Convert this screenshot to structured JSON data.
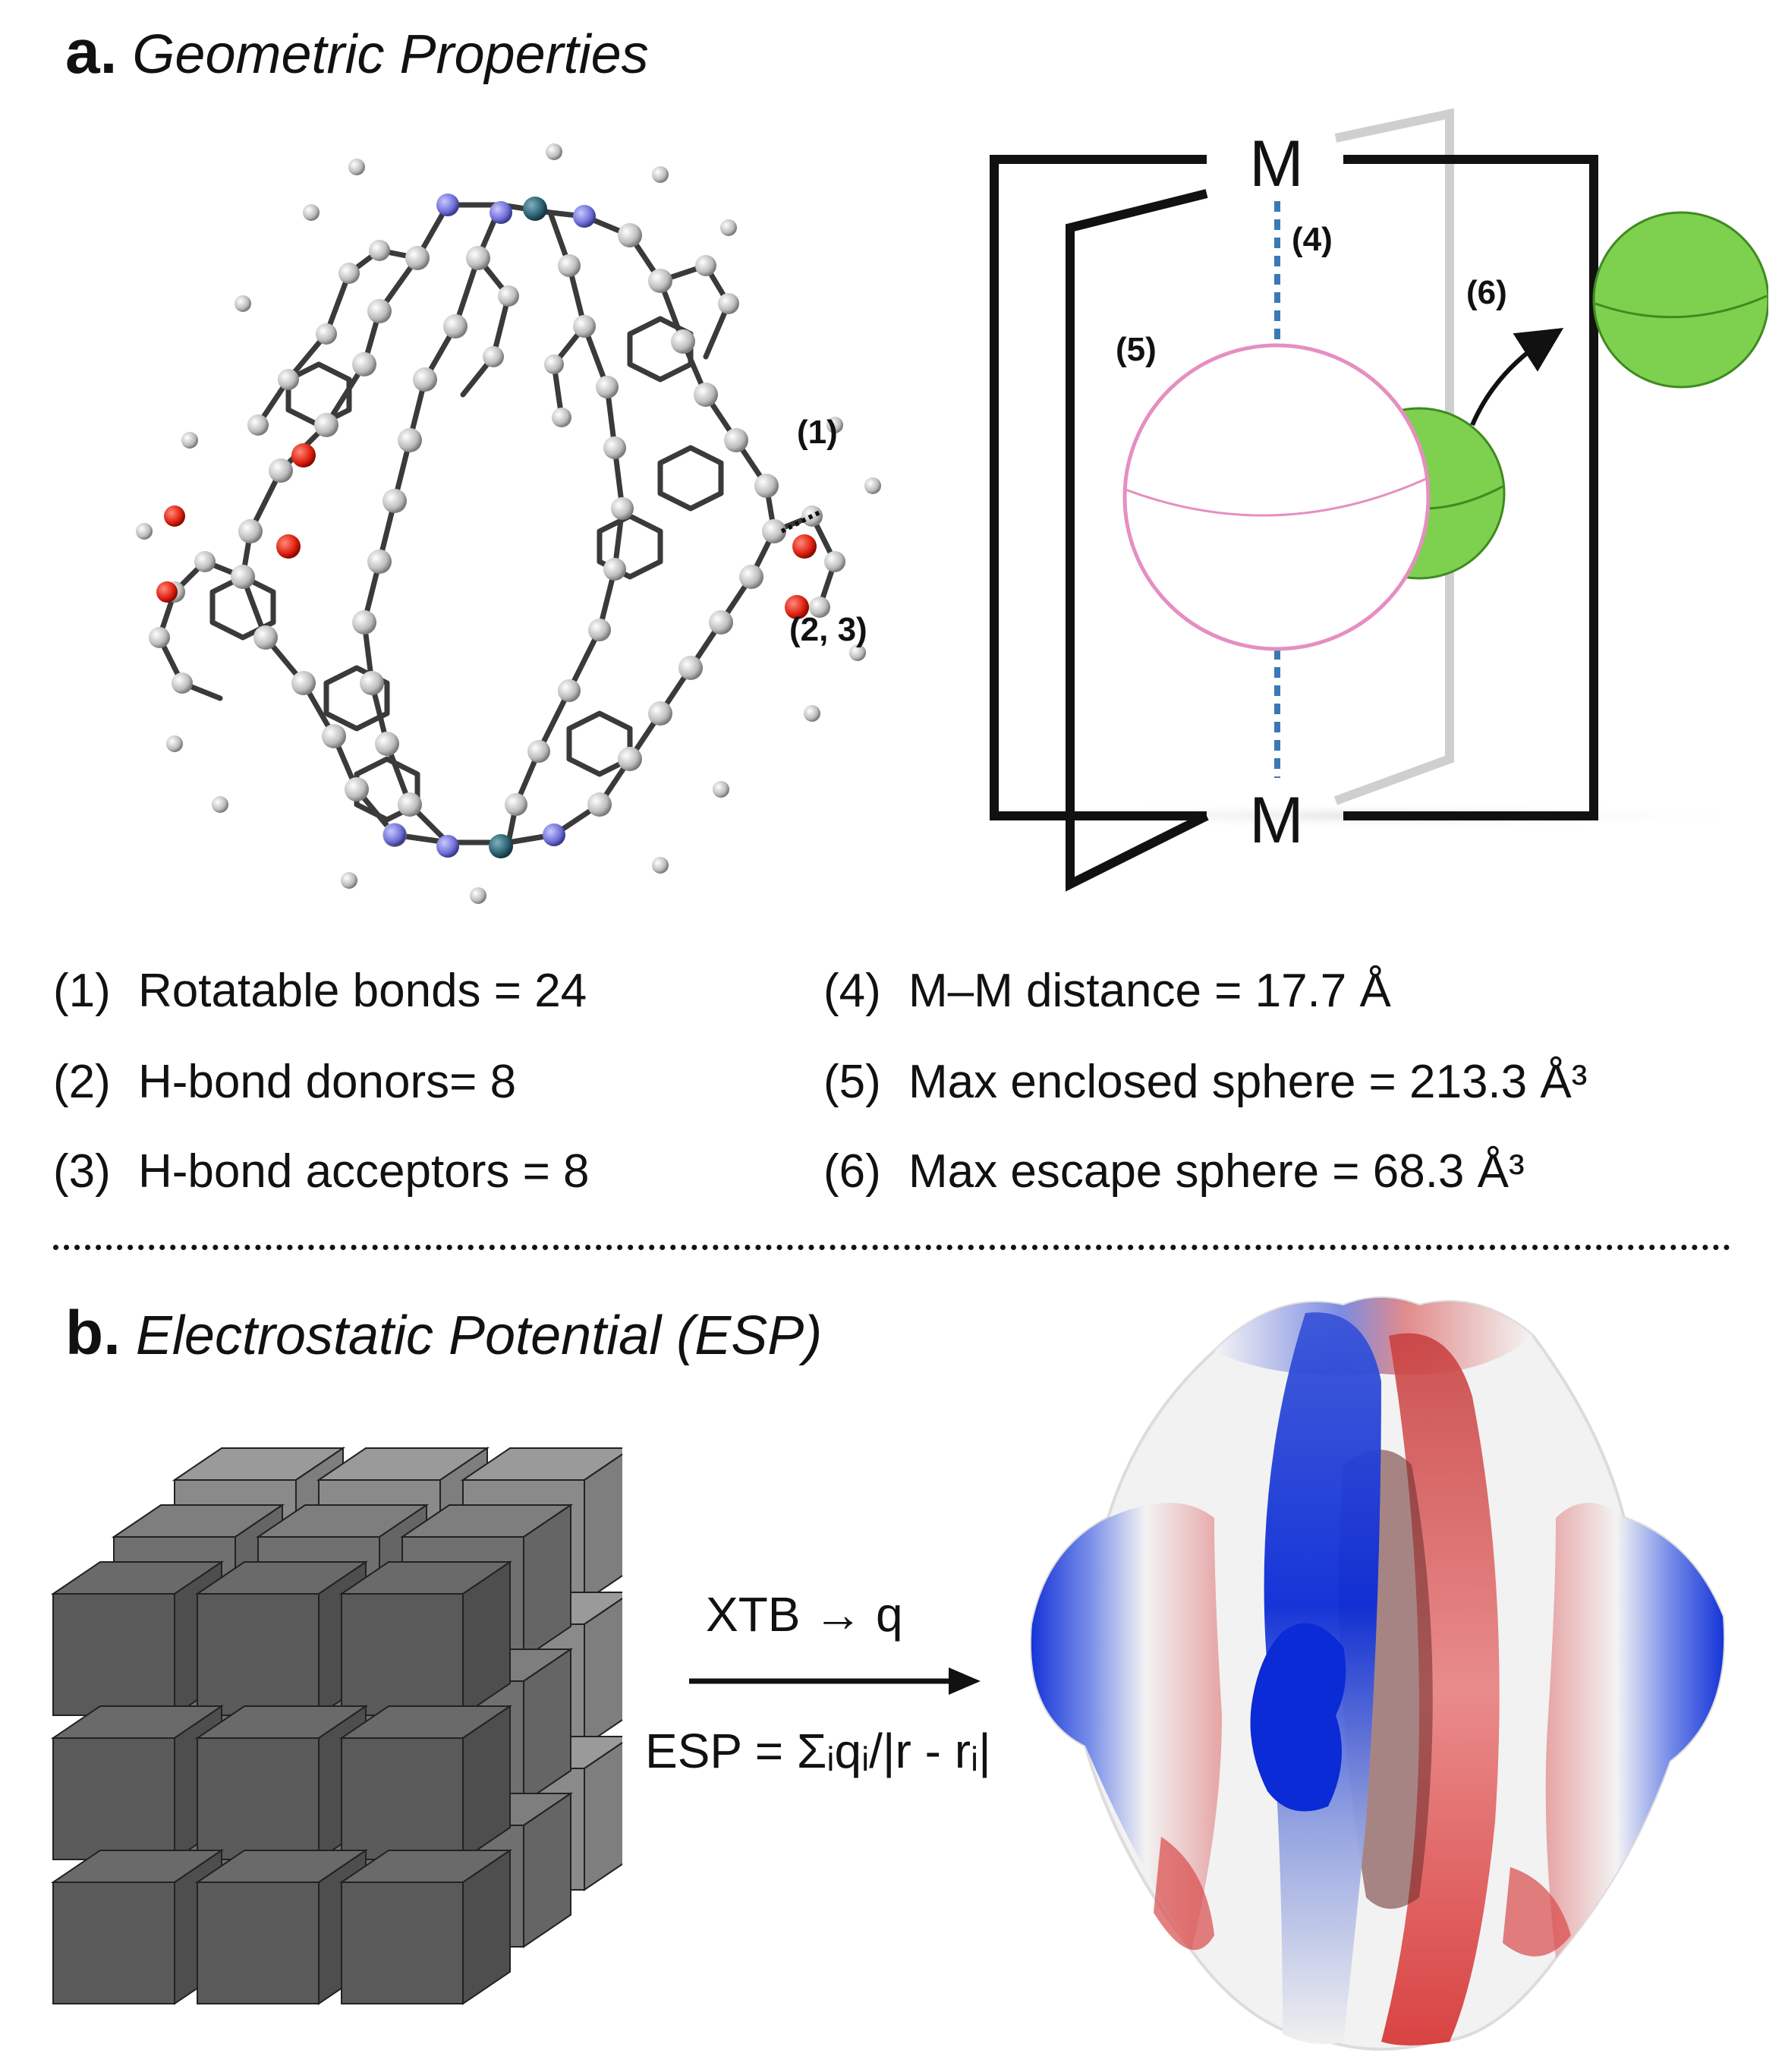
{
  "panel_a": {
    "letter": "a.",
    "title": "Geometric Properties",
    "molecule_labels": {
      "rotatable": "(1)",
      "hbond": "(2, 3)"
    },
    "schematic": {
      "metal_top": "M",
      "metal_bottom": "M",
      "label_distance": "(4)",
      "label_enclosed": "(5)",
      "label_escape": "(6)"
    },
    "properties_left": [
      {
        "num": "(1)",
        "text": "Rotatable bonds = 24"
      },
      {
        "num": "(2)",
        "text": "H-bond donors= 8"
      },
      {
        "num": "(3)",
        "text": "H-bond acceptors = 8"
      }
    ],
    "properties_right": [
      {
        "num": "(4)",
        "text": "M–M distance = 17.7 Å"
      },
      {
        "num": "(5)",
        "text": "Max enclosed sphere =  213.3 Å³"
      },
      {
        "num": "(6)",
        "text": "Max escape sphere = 68.3 Å³"
      }
    ]
  },
  "panel_b": {
    "letter": "b.",
    "title": "Electrostatic Potential (ESP)",
    "arrow_top": "XTB → q",
    "arrow_bottom": "ESP = Σᵢqᵢ/|r - rᵢ|"
  },
  "colors": {
    "sphere_pink": "#e58fc0",
    "sphere_green": "#7ed04f",
    "dash_blue": "#3a79b5",
    "cube_dark": "#5a5a5a",
    "esp_blue": "#0a2bd6",
    "esp_red": "#d63030"
  }
}
